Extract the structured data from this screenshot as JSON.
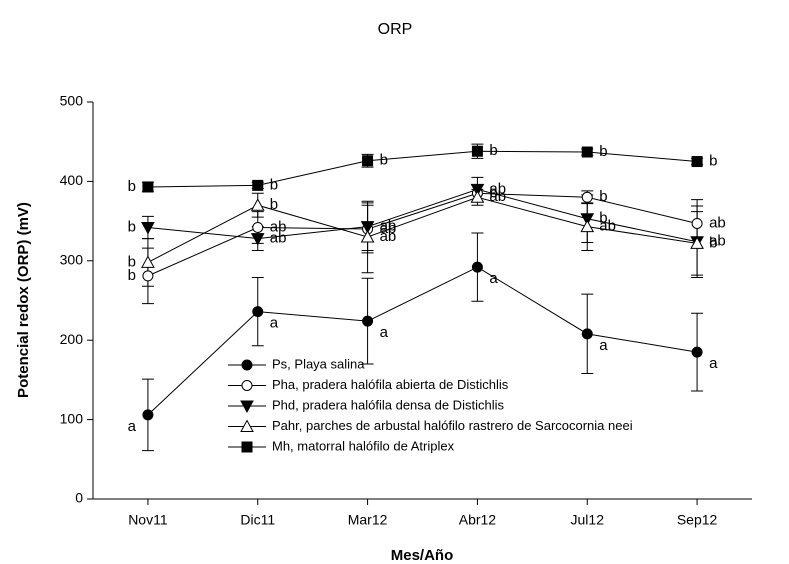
{
  "chart_data": {
    "type": "line",
    "title": "ORP",
    "x_label": "Mes/Año",
    "y_label": "Potencial redox (ORP) (mV)",
    "categories": [
      "Nov11",
      "Dic11",
      "Mar12",
      "Abr12",
      "Jul12",
      "Sep12"
    ],
    "ylim": [
      0,
      500
    ],
    "yticks": [
      0,
      100,
      200,
      300,
      400,
      500
    ],
    "grid": false,
    "series": [
      {
        "name": "Ps, Playa salina",
        "color": "#000000",
        "marker": "circle",
        "filled": true,
        "values": [
          106,
          236,
          224,
          292,
          208,
          185
        ],
        "errors": [
          45,
          43,
          54,
          43,
          50,
          49
        ],
        "letters": [
          "a",
          "a",
          "a",
          "a",
          "a",
          "a"
        ]
      },
      {
        "name": "Pha, pradera halófila abierta de Distichlis",
        "color": "#000000",
        "marker": "circle",
        "filled": false,
        "values": [
          281,
          342,
          340,
          385,
          380,
          347
        ],
        "errors": [
          35,
          20,
          30,
          10,
          8,
          30
        ],
        "letters": [
          "b",
          "ab",
          "ab",
          "b",
          "b",
          "ab"
        ]
      },
      {
        "name": "Phd, pradera halófila densa de Distichlis",
        "color": "#000000",
        "marker": "triangle-down",
        "filled": true,
        "values": [
          342,
          328,
          343,
          390,
          353,
          324
        ],
        "errors": [
          14,
          15,
          30,
          15,
          30,
          45
        ],
        "letters": [
          "b",
          "ab",
          "ab",
          "ab",
          "b",
          "ab"
        ]
      },
      {
        "name": "Pahr, parches de arbustal halófilo rastrero de Sarcocornia neei",
        "color": "#000000",
        "marker": "triangle-up",
        "filled": false,
        "values": [
          298,
          370,
          330,
          380,
          343,
          322
        ],
        "errors": [
          30,
          15,
          45,
          10,
          30,
          40
        ],
        "letters": [
          "b",
          "b",
          "ab",
          "ab",
          "ab",
          "b"
        ]
      },
      {
        "name": "Mh, matorral halófilo de Atriplex",
        "color": "#000000",
        "marker": "square",
        "filled": true,
        "values": [
          393,
          395,
          426,
          438,
          437,
          425
        ],
        "errors": [
          6,
          4,
          8,
          9,
          4,
          4
        ],
        "letters": [
          "b",
          "b",
          "b",
          "b",
          "b",
          "b"
        ]
      }
    ]
  }
}
